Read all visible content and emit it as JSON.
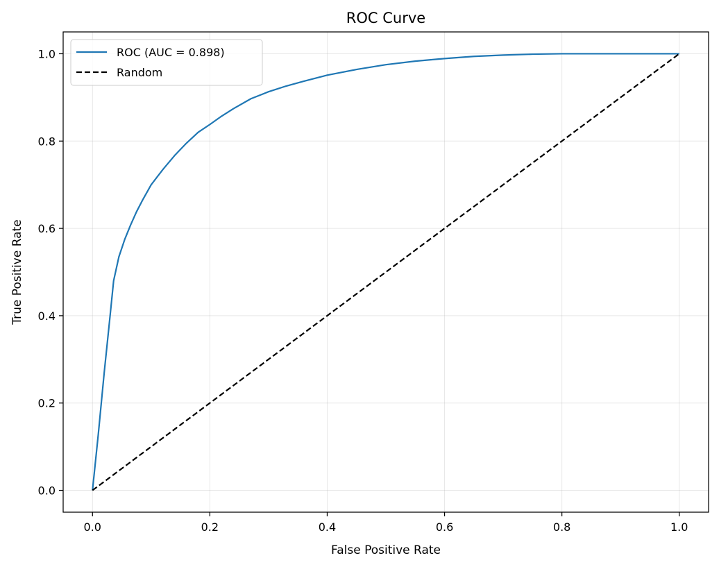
{
  "chart_data": {
    "type": "line",
    "title": "ROC Curve",
    "xlabel": "False Positive Rate",
    "ylabel": "True Positive Rate",
    "xlim": [
      -0.05,
      1.05
    ],
    "ylim": [
      -0.05,
      1.05
    ],
    "xticks": [
      0.0,
      0.2,
      0.4,
      0.6,
      0.8,
      1.0
    ],
    "yticks": [
      0.0,
      0.2,
      0.4,
      0.6,
      0.8,
      1.0
    ],
    "xtick_labels": [
      "0.0",
      "0.2",
      "0.4",
      "0.6",
      "0.8",
      "1.0"
    ],
    "ytick_labels": [
      "0.0",
      "0.2",
      "0.4",
      "0.6",
      "0.8",
      "1.0"
    ],
    "grid": true,
    "legend_position": "top-left",
    "series": [
      {
        "name": "ROC (AUC = 0.898)",
        "color": "#1f77b4",
        "style": "solid",
        "x": [
          0.0,
          0.01,
          0.02,
          0.03,
          0.036,
          0.045,
          0.055,
          0.065,
          0.075,
          0.085,
          0.1,
          0.12,
          0.14,
          0.16,
          0.18,
          0.2,
          0.22,
          0.24,
          0.27,
          0.3,
          0.33,
          0.36,
          0.4,
          0.45,
          0.5,
          0.55,
          0.6,
          0.65,
          0.7,
          0.75,
          0.8,
          0.85,
          0.9,
          0.95,
          1.0
        ],
        "y": [
          0.0,
          0.13,
          0.27,
          0.4,
          0.48,
          0.535,
          0.575,
          0.608,
          0.638,
          0.664,
          0.7,
          0.735,
          0.767,
          0.795,
          0.82,
          0.838,
          0.857,
          0.874,
          0.897,
          0.913,
          0.926,
          0.937,
          0.951,
          0.964,
          0.975,
          0.983,
          0.989,
          0.994,
          0.997,
          0.999,
          1.0,
          1.0,
          1.0,
          1.0,
          1.0
        ]
      },
      {
        "name": "Random",
        "color": "#000000",
        "style": "dashed",
        "x": [
          0.0,
          1.0
        ],
        "y": [
          0.0,
          1.0
        ]
      }
    ]
  }
}
